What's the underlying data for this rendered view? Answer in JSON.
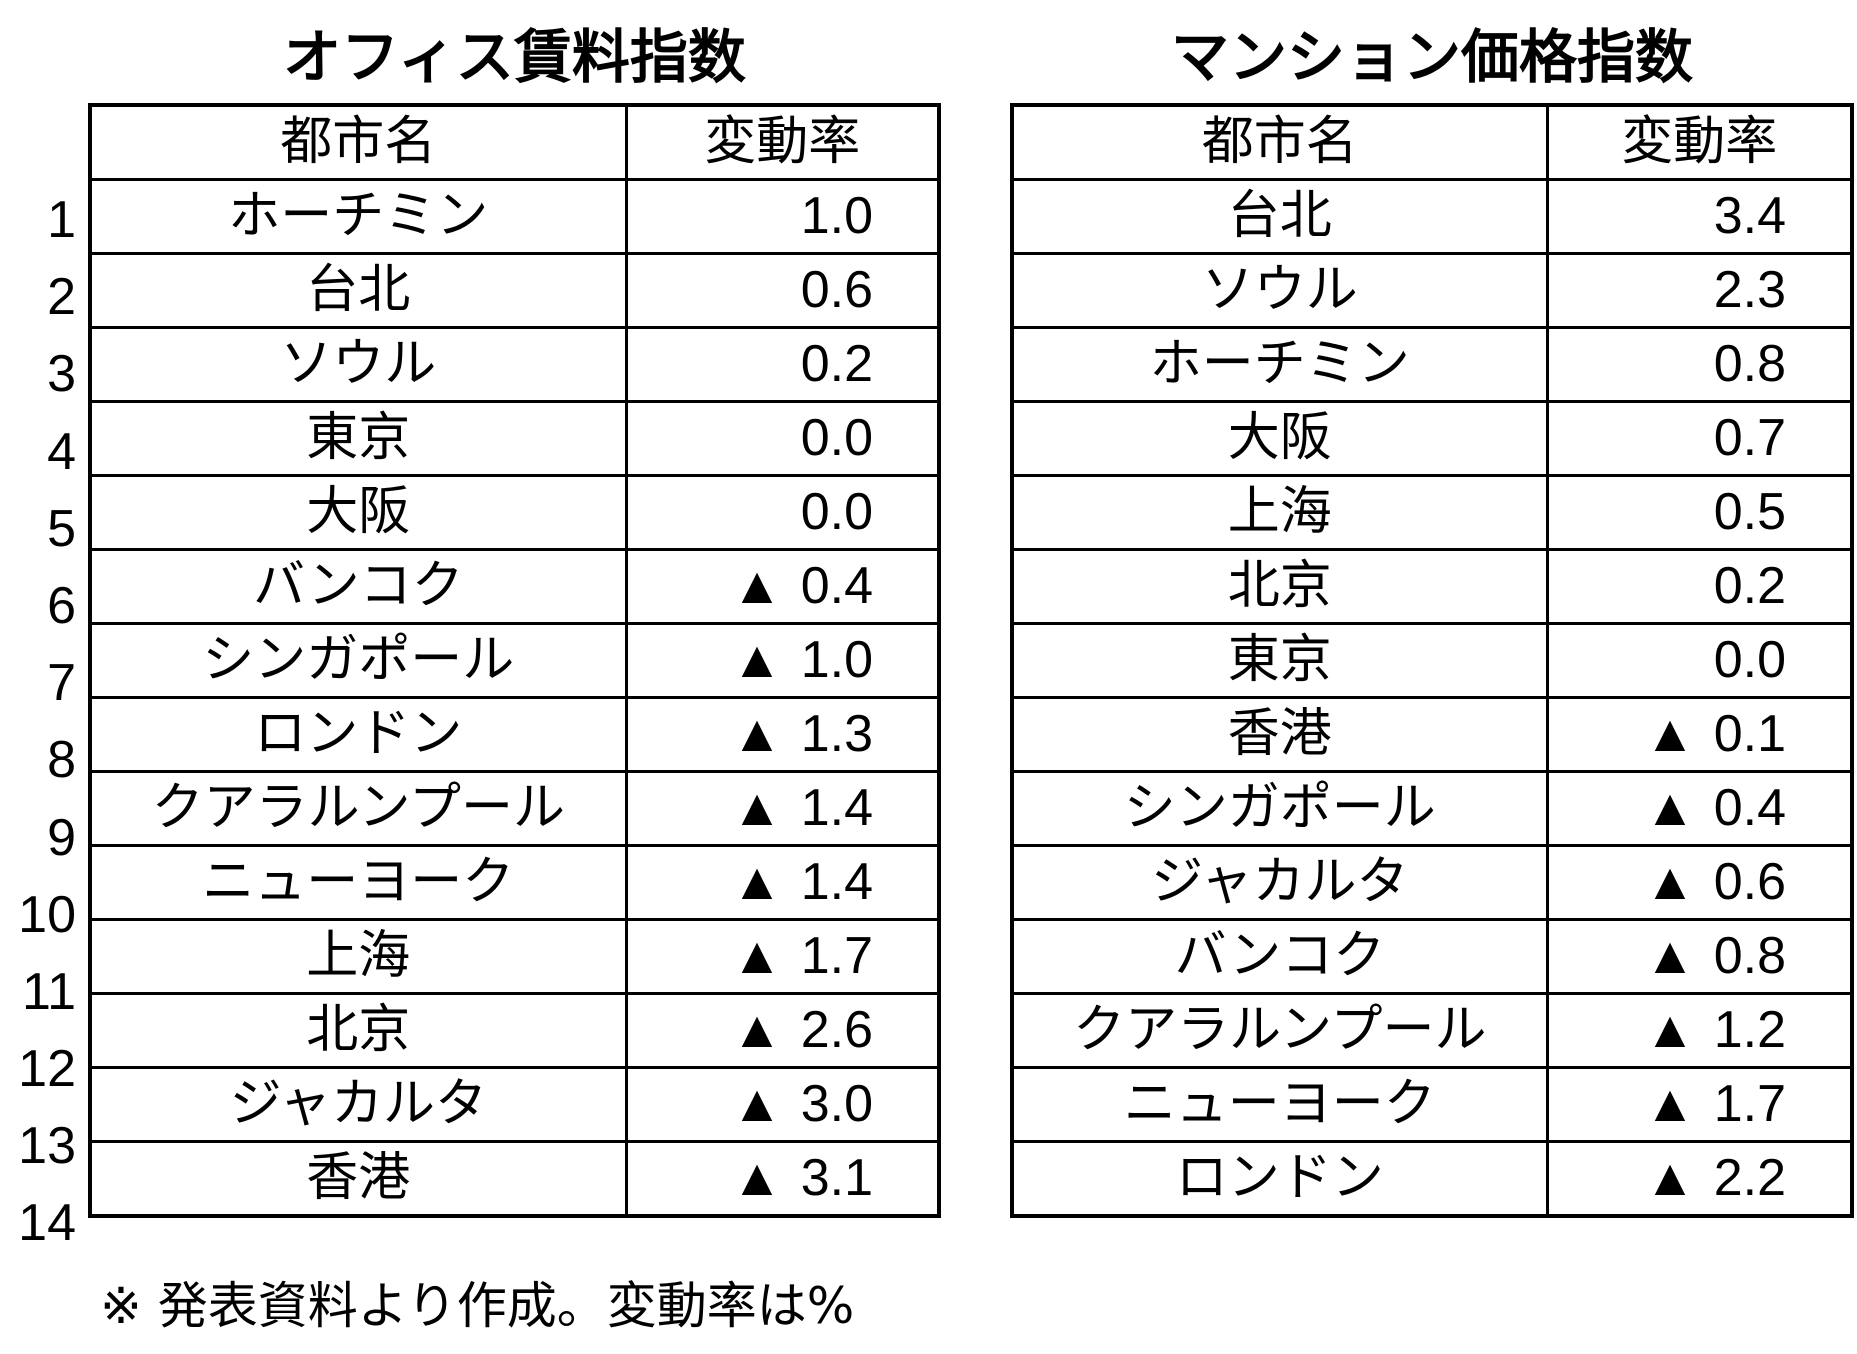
{
  "office": {
    "title": "オフィス賃料指数",
    "header_city": "都市名",
    "header_rate": "変動率",
    "rows": [
      {
        "rank": "1",
        "city": "ホーチミン",
        "neg": "",
        "value": "1.0"
      },
      {
        "rank": "2",
        "city": "台北",
        "neg": "",
        "value": "0.6"
      },
      {
        "rank": "3",
        "city": "ソウル",
        "neg": "",
        "value": "0.2"
      },
      {
        "rank": "4",
        "city": "東京",
        "neg": "",
        "value": "0.0"
      },
      {
        "rank": "5",
        "city": "大阪",
        "neg": "",
        "value": "0.0"
      },
      {
        "rank": "6",
        "city": "バンコク",
        "neg": "▲",
        "value": "0.4"
      },
      {
        "rank": "7",
        "city": "シンガポール",
        "neg": "▲",
        "value": "1.0"
      },
      {
        "rank": "8",
        "city": "ロンドン",
        "neg": "▲",
        "value": "1.3"
      },
      {
        "rank": "9",
        "city": "クアラルンプール",
        "neg": "▲",
        "value": "1.4"
      },
      {
        "rank": "10",
        "city": "ニューヨーク",
        "neg": "▲",
        "value": "1.4"
      },
      {
        "rank": "11",
        "city": "上海",
        "neg": "▲",
        "value": "1.7"
      },
      {
        "rank": "12",
        "city": "北京",
        "neg": "▲",
        "value": "2.6"
      },
      {
        "rank": "13",
        "city": "ジャカルタ",
        "neg": "▲",
        "value": "3.0"
      },
      {
        "rank": "14",
        "city": "香港",
        "neg": "▲",
        "value": "3.1"
      }
    ]
  },
  "condo": {
    "title": "マンション価格指数",
    "header_city": "都市名",
    "header_rate": "変動率",
    "rows": [
      {
        "city": "台北",
        "neg": "",
        "value": "3.4"
      },
      {
        "city": "ソウル",
        "neg": "",
        "value": "2.3"
      },
      {
        "city": "ホーチミン",
        "neg": "",
        "value": "0.8"
      },
      {
        "city": "大阪",
        "neg": "",
        "value": "0.7"
      },
      {
        "city": "上海",
        "neg": "",
        "value": "0.5"
      },
      {
        "city": "北京",
        "neg": "",
        "value": "0.2"
      },
      {
        "city": "東京",
        "neg": "",
        "value": "0.0"
      },
      {
        "city": "香港",
        "neg": "▲",
        "value": "0.1"
      },
      {
        "city": "シンガポール",
        "neg": "▲",
        "value": "0.4"
      },
      {
        "city": "ジャカルタ",
        "neg": "▲",
        "value": "0.6"
      },
      {
        "city": "バンコク",
        "neg": "▲",
        "value": "0.8"
      },
      {
        "city": "クアラルンプール",
        "neg": "▲",
        "value": "1.2"
      },
      {
        "city": "ニューヨーク",
        "neg": "▲",
        "value": "1.7"
      },
      {
        "city": "ロンドン",
        "neg": "▲",
        "value": "2.2"
      }
    ]
  },
  "footnote": "※ 発表資料より作成。変動率は%"
}
